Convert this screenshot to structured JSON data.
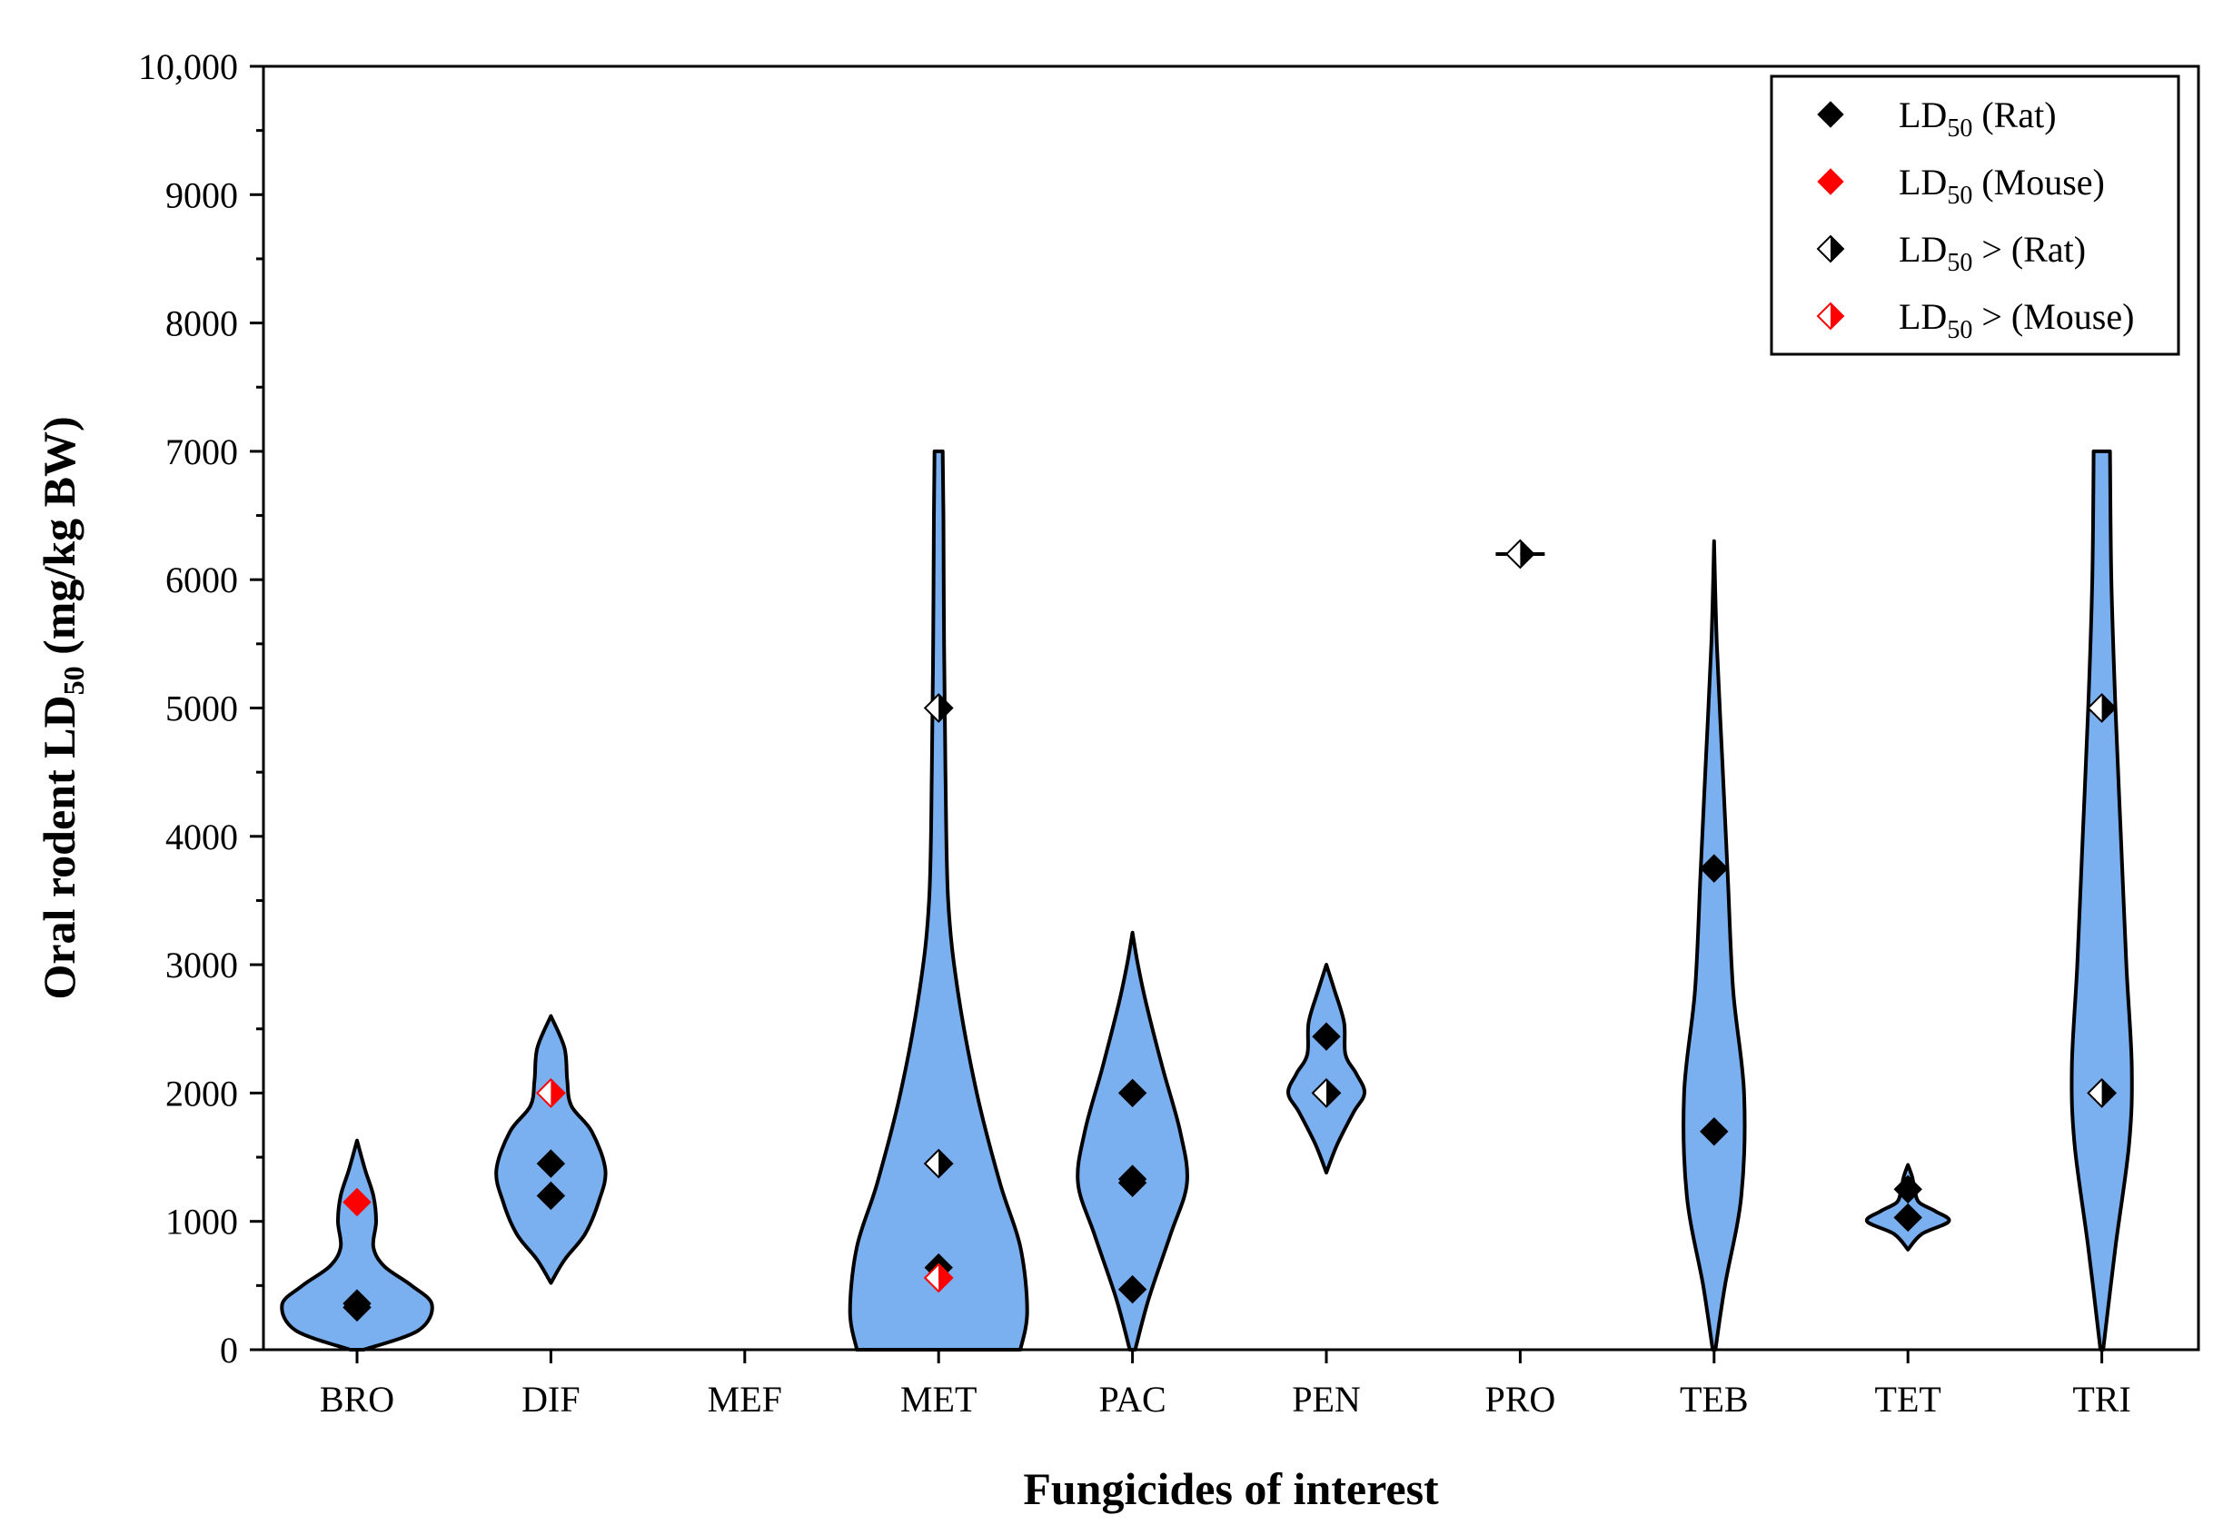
{
  "chart_data": {
    "type": "violin",
    "title": "",
    "xlabel": "Fungicides of interest",
    "ylabel": {
      "main": "Oral rodent LD",
      "sub": "50",
      "tail": " (mg/kg BW)"
    },
    "ylim": [
      0,
      10000
    ],
    "yticks": [
      {
        "value": 0,
        "label": "0"
      },
      {
        "value": 1000,
        "label": "1000"
      },
      {
        "value": 2000,
        "label": "2000"
      },
      {
        "value": 3000,
        "label": "3000"
      },
      {
        "value": 4000,
        "label": "4000"
      },
      {
        "value": 5000,
        "label": "5000"
      },
      {
        "value": 6000,
        "label": "6000"
      },
      {
        "value": 7000,
        "label": "7000"
      },
      {
        "value": 8000,
        "label": "8000"
      },
      {
        "value": 9000,
        "label": "9000"
      },
      {
        "value": 10000,
        "label": "10,000"
      }
    ],
    "categories": [
      "BRO",
      "DIF",
      "MEF",
      "MET",
      "PAC",
      "PEN",
      "PRO",
      "TEB",
      "TET",
      "TRI"
    ],
    "violin_color": "#7aaff0",
    "legend": {
      "position": "top-right",
      "entries": [
        {
          "key": "rat",
          "main": "LD",
          "sub": "50",
          "tail": " (Rat)",
          "color": "#000000",
          "style": "filled"
        },
        {
          "key": "mouse",
          "main": "LD",
          "sub": "50",
          "tail": " (Mouse)",
          "color": "#ff0000",
          "style": "filled"
        },
        {
          "key": "rat_gt",
          "main": "LD",
          "sub": "50",
          "tail": " > (Rat)",
          "color": "#000000",
          "style": "half"
        },
        {
          "key": "mouse_gt",
          "main": "LD",
          "sub": "50",
          "tail": " > (Mouse)",
          "color": "#ff0000",
          "style": "half"
        }
      ]
    },
    "violins": [
      {
        "category": "BRO",
        "profile": [
          [
            0,
            0.05
          ],
          [
            150,
            0.45
          ],
          [
            350,
            0.55
          ],
          [
            500,
            0.4
          ],
          [
            650,
            0.2
          ],
          [
            800,
            0.12
          ],
          [
            1000,
            0.14
          ],
          [
            1200,
            0.12
          ],
          [
            1400,
            0.06
          ],
          [
            1630,
            0
          ]
        ]
      },
      {
        "category": "DIF",
        "profile": [
          [
            520,
            0
          ],
          [
            700,
            0.1
          ],
          [
            900,
            0.25
          ],
          [
            1150,
            0.35
          ],
          [
            1400,
            0.4
          ],
          [
            1700,
            0.3
          ],
          [
            1900,
            0.15
          ],
          [
            2100,
            0.12
          ],
          [
            2350,
            0.1
          ],
          [
            2600,
            0
          ]
        ]
      },
      {
        "category": "MET",
        "profile": [
          [
            0,
            0.6
          ],
          [
            300,
            0.65
          ],
          [
            800,
            0.6
          ],
          [
            1300,
            0.45
          ],
          [
            2000,
            0.28
          ],
          [
            2800,
            0.14
          ],
          [
            3500,
            0.07
          ],
          [
            4500,
            0.05
          ],
          [
            5500,
            0.04
          ],
          [
            6500,
            0.035
          ],
          [
            7000,
            0.03
          ]
        ]
      },
      {
        "category": "PAC",
        "profile": [
          [
            0,
            0.02
          ],
          [
            400,
            0.12
          ],
          [
            900,
            0.28
          ],
          [
            1300,
            0.4
          ],
          [
            1700,
            0.35
          ],
          [
            2200,
            0.22
          ],
          [
            2700,
            0.1
          ],
          [
            3000,
            0.04
          ],
          [
            3250,
            0
          ]
        ]
      },
      {
        "category": "PEN",
        "profile": [
          [
            1380,
            0
          ],
          [
            1600,
            0.08
          ],
          [
            1850,
            0.2
          ],
          [
            2000,
            0.28
          ],
          [
            2150,
            0.22
          ],
          [
            2300,
            0.14
          ],
          [
            2550,
            0.13
          ],
          [
            2800,
            0.06
          ],
          [
            3000,
            0
          ]
        ]
      },
      {
        "category": "PRO",
        "profile": [
          [
            6190,
            0.18
          ],
          [
            6210,
            0.18
          ]
        ]
      },
      {
        "category": "TEB",
        "profile": [
          [
            0,
            0.01
          ],
          [
            500,
            0.08
          ],
          [
            1200,
            0.2
          ],
          [
            2000,
            0.22
          ],
          [
            2800,
            0.14
          ],
          [
            3700,
            0.1
          ],
          [
            4600,
            0.06
          ],
          [
            5500,
            0.02
          ],
          [
            6300,
            0
          ]
        ]
      },
      {
        "category": "TET",
        "profile": [
          [
            780,
            0
          ],
          [
            900,
            0.1
          ],
          [
            1000,
            0.3
          ],
          [
            1080,
            0.2
          ],
          [
            1150,
            0.08
          ],
          [
            1250,
            0.05
          ],
          [
            1350,
            0.03
          ],
          [
            1440,
            0
          ]
        ]
      },
      {
        "category": "TRI",
        "profile": [
          [
            0,
            0.01
          ],
          [
            800,
            0.1
          ],
          [
            1600,
            0.2
          ],
          [
            2200,
            0.22
          ],
          [
            3000,
            0.18
          ],
          [
            4000,
            0.14
          ],
          [
            5000,
            0.1
          ],
          [
            6000,
            0.07
          ],
          [
            7000,
            0.06
          ]
        ]
      }
    ],
    "points": [
      {
        "category": "BRO",
        "value": 330,
        "type": "rat"
      },
      {
        "category": "BRO",
        "value": 360,
        "type": "rat"
      },
      {
        "category": "BRO",
        "value": 1150,
        "type": "mouse"
      },
      {
        "category": "DIF",
        "value": 1200,
        "type": "rat"
      },
      {
        "category": "DIF",
        "value": 1450,
        "type": "rat"
      },
      {
        "category": "DIF",
        "value": 2000,
        "type": "mouse_gt"
      },
      {
        "category": "MET",
        "value": 640,
        "type": "rat"
      },
      {
        "category": "MET",
        "value": 560,
        "type": "mouse_gt"
      },
      {
        "category": "MET",
        "value": 1450,
        "type": "rat_gt"
      },
      {
        "category": "MET",
        "value": 5000,
        "type": "rat_gt"
      },
      {
        "category": "PAC",
        "value": 470,
        "type": "rat"
      },
      {
        "category": "PAC",
        "value": 1300,
        "type": "rat"
      },
      {
        "category": "PAC",
        "value": 1330,
        "type": "rat"
      },
      {
        "category": "PAC",
        "value": 2000,
        "type": "rat"
      },
      {
        "category": "PEN",
        "value": 2000,
        "type": "rat_gt"
      },
      {
        "category": "PEN",
        "value": 2440,
        "type": "rat"
      },
      {
        "category": "PRO",
        "value": 6200,
        "type": "rat_gt"
      },
      {
        "category": "TEB",
        "value": 1700,
        "type": "rat"
      },
      {
        "category": "TEB",
        "value": 3750,
        "type": "rat"
      },
      {
        "category": "TET",
        "value": 1030,
        "type": "rat"
      },
      {
        "category": "TET",
        "value": 1250,
        "type": "rat"
      },
      {
        "category": "TRI",
        "value": 2000,
        "type": "rat_gt"
      },
      {
        "category": "TRI",
        "value": 5000,
        "type": "rat_gt"
      }
    ]
  }
}
